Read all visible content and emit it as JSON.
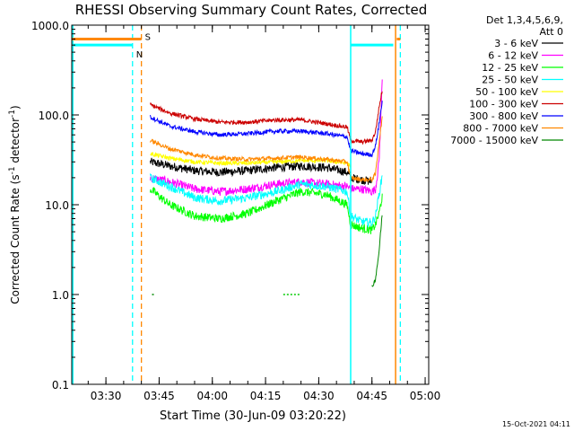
{
  "chart_data": {
    "type": "line",
    "title": "RHESSI Observing Summary Count Rates, Corrected",
    "xlabel": "Start Time (30-Jun-09 03:20:22)",
    "ylabel_main": "Corrected Count Rate (s",
    "ylabel_sup1": "-1",
    "ylabel_mid": " detector",
    "ylabel_sup2": "-1",
    "ylabel_end": ")",
    "yscale": "log",
    "ylim": [
      0.1,
      1000
    ],
    "xlim": [
      "03:20:22",
      "05:01:00"
    ],
    "yticks": [
      {
        "v": 1000,
        "label": "1000.0"
      },
      {
        "v": 100,
        "label": "100.0"
      },
      {
        "v": 10,
        "label": "10.0"
      },
      {
        "v": 1,
        "label": "1.0"
      },
      {
        "v": 0.1,
        "label": "0.1"
      }
    ],
    "xticks": [
      {
        "t": "03:30",
        "label": "03:30"
      },
      {
        "t": "03:45",
        "label": "03:45"
      },
      {
        "t": "04:00",
        "label": "04:00"
      },
      {
        "t": "04:15",
        "label": "04:15"
      },
      {
        "t": "04:30",
        "label": "04:30"
      },
      {
        "t": "04:45",
        "label": "04:45"
      },
      {
        "t": "05:00",
        "label": "05:00"
      }
    ],
    "legend": {
      "placement": "right",
      "header1": "Det 1,3,4,5,6,9,",
      "header2": "Att 0"
    },
    "series": [
      {
        "name": "3 - 6 keV",
        "color": "#000000",
        "points": [
          [
            "03:42:30",
            30
          ],
          [
            "03:48",
            27
          ],
          [
            "03:55",
            24
          ],
          [
            "04:02",
            23
          ],
          [
            "04:10",
            24
          ],
          [
            "04:18",
            26
          ],
          [
            "04:25",
            27
          ],
          [
            "04:32",
            26
          ],
          [
            "04:38",
            23
          ],
          [
            "04:39",
            20
          ],
          [
            "04:42",
            19
          ],
          [
            "04:45",
            18
          ]
        ]
      },
      {
        "name": "6 - 12 keV",
        "color": "#ff00ff",
        "points": [
          [
            "03:42:30",
            20
          ],
          [
            "03:48",
            18
          ],
          [
            "03:55",
            15
          ],
          [
            "04:02",
            14
          ],
          [
            "04:10",
            15
          ],
          [
            "04:18",
            17
          ],
          [
            "04:25",
            18
          ],
          [
            "04:32",
            17
          ],
          [
            "04:38",
            16
          ],
          [
            "04:39",
            15
          ],
          [
            "04:42",
            15
          ],
          [
            "04:45",
            14
          ],
          [
            "04:46",
            15
          ],
          [
            "04:47",
            30
          ],
          [
            "04:48",
            300
          ]
        ]
      },
      {
        "name": "12 - 25 keV",
        "color": "#00ff00",
        "points": [
          [
            "03:42:30",
            15
          ],
          [
            "03:48",
            10
          ],
          [
            "03:55",
            7.5
          ],
          [
            "04:02",
            7
          ],
          [
            "04:10",
            8
          ],
          [
            "04:18",
            11
          ],
          [
            "04:25",
            14
          ],
          [
            "04:32",
            13
          ],
          [
            "04:38",
            10
          ],
          [
            "04:39",
            6
          ],
          [
            "04:42",
            5.5
          ],
          [
            "04:45",
            5.2
          ],
          [
            "04:46",
            6
          ],
          [
            "04:47",
            8
          ],
          [
            "04:48",
            13
          ]
        ]
      },
      {
        "name": "25 - 50 keV",
        "color": "#00ffff",
        "points": [
          [
            "03:42:30",
            20
          ],
          [
            "03:48",
            16
          ],
          [
            "03:55",
            12
          ],
          [
            "04:02",
            11
          ],
          [
            "04:10",
            12
          ],
          [
            "04:18",
            14
          ],
          [
            "04:25",
            17
          ],
          [
            "04:32",
            16
          ],
          [
            "04:38",
            14
          ],
          [
            "04:39",
            7.5
          ],
          [
            "04:42",
            6.5
          ],
          [
            "04:45",
            6.3
          ],
          [
            "04:46",
            7.5
          ],
          [
            "04:47",
            13
          ],
          [
            "04:48",
            22
          ]
        ]
      },
      {
        "name": "50 - 100 keV",
        "color": "#ffff00",
        "points": [
          [
            "03:42:30",
            37
          ],
          [
            "03:48",
            33
          ],
          [
            "03:55",
            30
          ],
          [
            "04:02",
            29
          ],
          [
            "04:10",
            29
          ],
          [
            "04:18",
            30
          ],
          [
            "04:25",
            31
          ],
          [
            "04:32",
            31
          ],
          [
            "04:38",
            29
          ],
          [
            "04:39",
            27
          ]
        ]
      },
      {
        "name": "100 - 300 keV",
        "color": "#cc0000",
        "points": [
          [
            "03:42:30",
            130
          ],
          [
            "03:48",
            105
          ],
          [
            "03:55",
            90
          ],
          [
            "04:02",
            83
          ],
          [
            "04:10",
            83
          ],
          [
            "04:18",
            88
          ],
          [
            "04:25",
            88
          ],
          [
            "04:32",
            80
          ],
          [
            "04:38",
            73
          ],
          [
            "04:39",
            52
          ],
          [
            "04:42",
            50
          ],
          [
            "04:45",
            52
          ],
          [
            "04:46",
            65
          ],
          [
            "04:47",
            120
          ],
          [
            "04:48",
            200
          ]
        ]
      },
      {
        "name": "300 - 800 keV",
        "color": "#0000ff",
        "points": [
          [
            "03:42:30",
            95
          ],
          [
            "03:48",
            75
          ],
          [
            "03:55",
            65
          ],
          [
            "04:02",
            60
          ],
          [
            "04:10",
            62
          ],
          [
            "04:18",
            66
          ],
          [
            "04:25",
            66
          ],
          [
            "04:32",
            62
          ],
          [
            "04:38",
            57
          ],
          [
            "04:39",
            40
          ],
          [
            "04:42",
            37
          ],
          [
            "04:45",
            36
          ],
          [
            "04:46",
            45
          ],
          [
            "04:47",
            80
          ],
          [
            "04:48",
            150
          ]
        ]
      },
      {
        "name": "800 - 7000 keV",
        "color": "#ff8800",
        "points": [
          [
            "03:42:30",
            52
          ],
          [
            "03:48",
            42
          ],
          [
            "03:55",
            36
          ],
          [
            "04:02",
            33
          ],
          [
            "04:10",
            32
          ],
          [
            "04:18",
            33
          ],
          [
            "04:25",
            34
          ],
          [
            "04:32",
            32
          ],
          [
            "04:38",
            30
          ],
          [
            "04:39",
            20
          ],
          [
            "04:42",
            19
          ],
          [
            "04:45",
            19
          ],
          [
            "04:46",
            22
          ],
          [
            "04:47",
            50
          ],
          [
            "04:48",
            100
          ]
        ]
      },
      {
        "name": "7000 - 15000 keV",
        "color": "#008800",
        "points": [
          [
            "04:45",
            1.2
          ],
          [
            "04:46",
            1.5
          ],
          [
            "04:47",
            3
          ],
          [
            "04:48",
            9
          ]
        ]
      }
    ]
  },
  "overlays": {
    "saa_color": "#00ffff",
    "night_color": "#00ffff",
    "flare_color": "#ff8800",
    "night_label": "N",
    "saa_label": "S",
    "level_bars": [
      {
        "color": "#00ffff",
        "from": "03:20:22",
        "to": "03:37:30",
        "level": 600
      },
      {
        "color": "#ff8800",
        "from": "03:20:22",
        "to": "03:40:00",
        "level": 700
      },
      {
        "color": "#00ffff",
        "from": "04:39:00",
        "to": "04:51:00",
        "level": 600
      },
      {
        "color": "#ff8800",
        "from": "04:52:00",
        "to": "04:53:00",
        "level": 700
      }
    ],
    "solid_lines": [
      {
        "t": "03:20:40",
        "color": "#00ffff"
      },
      {
        "t": "04:39:00",
        "color": "#00ffff"
      },
      {
        "t": "04:51:40",
        "color": "#ff8800"
      }
    ],
    "dashed_lines": [
      {
        "t": "03:37:30",
        "color": "#00ffff"
      },
      {
        "t": "03:40:00",
        "color": "#ff8800"
      },
      {
        "t": "04:53:00",
        "color": "#00ffff"
      }
    ],
    "low_marks": [
      {
        "color": "#008800",
        "from": "03:43:00",
        "to": "03:44:00",
        "level": 1.0
      },
      {
        "color": "#00cc00",
        "from": "04:20:00",
        "to": "04:25:00",
        "level": 1.0
      }
    ]
  },
  "footer": {
    "timestamp": "15-Oct-2021 04:11"
  }
}
